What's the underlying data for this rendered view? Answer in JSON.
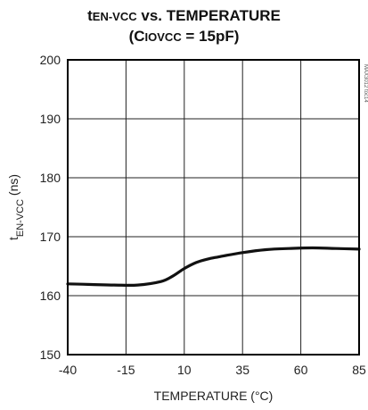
{
  "title": {
    "line1_main": "t",
    "line1_sub": "EN-VCC",
    "line1_rest": " vs. TEMPERATURE",
    "line2_open": "(C",
    "line2_sub": "IOVCC",
    "line2_rest": " = 15pF)"
  },
  "side_code": "MAX3012 toc14",
  "chart_data": {
    "type": "line",
    "title": "tEN-VCC vs. TEMPERATURE (CIOVCC = 15pF)",
    "xlabel": "TEMPERATURE (°C)",
    "ylabel": "tEN-VCC (ns)",
    "ylabel_main": "t",
    "ylabel_sub": "EN-VCC",
    "ylabel_rest": " (ns)",
    "xlim": [
      -40,
      85
    ],
    "ylim": [
      150,
      200
    ],
    "xticks": [
      -40,
      -15,
      10,
      35,
      60,
      85
    ],
    "yticks": [
      150,
      160,
      170,
      180,
      190,
      200
    ],
    "grid": true,
    "series": [
      {
        "x": [
          -40,
          -30,
          -20,
          -10,
          0,
          5,
          10,
          15,
          20,
          25,
          35,
          45,
          55,
          65,
          75,
          85
        ],
        "y": [
          162.0,
          161.9,
          161.8,
          161.8,
          162.4,
          163.3,
          164.6,
          165.6,
          166.2,
          166.6,
          167.3,
          167.8,
          168.0,
          168.1,
          168.0,
          167.9
        ]
      }
    ]
  }
}
